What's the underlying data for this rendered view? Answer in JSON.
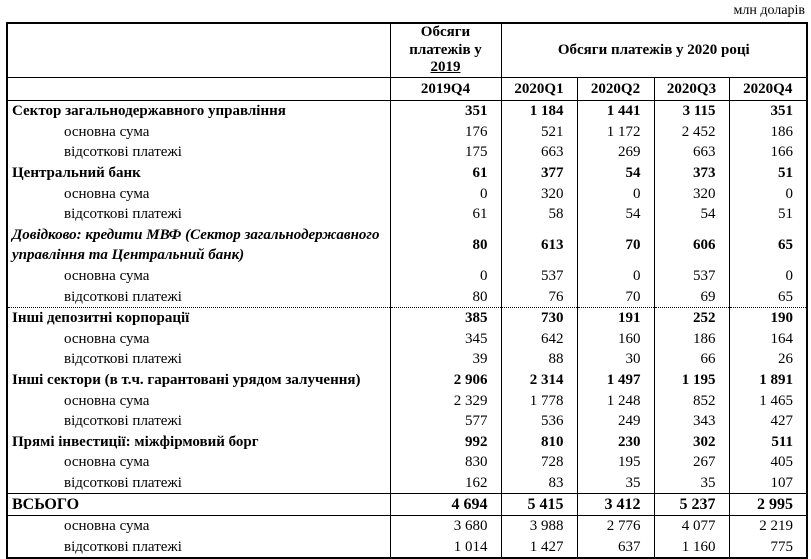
{
  "unit_label": "млн доларів",
  "header": {
    "group_2019_text": "Обсяги платежів у",
    "group_2019_year": "2019",
    "group_2020_text": "Обсяги платежів у 2020 році",
    "quarters": [
      "2019Q4",
      "2020Q1",
      "2020Q2",
      "2020Q3",
      "2020Q4"
    ]
  },
  "table": {
    "rows": [
      {
        "style": "section",
        "label": "Сектор загальнодержавного управління",
        "values": [
          "351",
          "1 184",
          "1 441",
          "3 115",
          "351"
        ]
      },
      {
        "style": "sub",
        "label": "основна сума",
        "values": [
          "176",
          "521",
          "1 172",
          "2 452",
          "186"
        ]
      },
      {
        "style": "sub",
        "label": "відсоткові платежі",
        "values": [
          "175",
          "663",
          "269",
          "663",
          "166"
        ]
      },
      {
        "style": "section",
        "label": "Центральний банк",
        "values": [
          "61",
          "377",
          "54",
          "373",
          "51"
        ]
      },
      {
        "style": "sub",
        "label": "основна сума",
        "values": [
          "0",
          "320",
          "0",
          "320",
          "0"
        ]
      },
      {
        "style": "sub",
        "label": "відсоткові платежі",
        "values": [
          "61",
          "58",
          "54",
          "54",
          "51"
        ]
      },
      {
        "style": "memo",
        "label": "Довідково: кредити МВФ (Сектор загальнодержавного управління та Центральний банк)",
        "values": [
          "80",
          "613",
          "70",
          "606",
          "65"
        ]
      },
      {
        "style": "sub",
        "label": "основна сума",
        "values": [
          "0",
          "537",
          "0",
          "537",
          "0"
        ]
      },
      {
        "style": "sub",
        "label": "відсоткові платежі",
        "dotted": true,
        "values": [
          "80",
          "76",
          "70",
          "69",
          "65"
        ]
      },
      {
        "style": "section",
        "label": "Інші депозитні корпорації",
        "values": [
          "385",
          "730",
          "191",
          "252",
          "190"
        ]
      },
      {
        "style": "sub",
        "label": "основна сума",
        "values": [
          "345",
          "642",
          "160",
          "186",
          "164"
        ]
      },
      {
        "style": "sub",
        "label": "відсоткові платежі",
        "values": [
          "39",
          "88",
          "30",
          "66",
          "26"
        ]
      },
      {
        "style": "section",
        "label": "Інші сектори (в т.ч. гарантовані урядом залучення)",
        "values": [
          "2 906",
          "2 314",
          "1 497",
          "1 195",
          "1 891"
        ]
      },
      {
        "style": "sub",
        "label": "основна сума",
        "values": [
          "2 329",
          "1 778",
          "1 248",
          "852",
          "1 465"
        ]
      },
      {
        "style": "sub",
        "label": "відсоткові платежі",
        "values": [
          "577",
          "536",
          "249",
          "343",
          "427"
        ]
      },
      {
        "style": "section",
        "label": "Прямі інвестиції: міжфірмовий борг",
        "values": [
          "992",
          "810",
          "230",
          "302",
          "511"
        ]
      },
      {
        "style": "sub",
        "label": "основна сума",
        "values": [
          "830",
          "728",
          "195",
          "267",
          "405"
        ]
      },
      {
        "style": "sub",
        "label": "відсоткові платежі",
        "values": [
          "162",
          "83",
          "35",
          "35",
          "107"
        ]
      },
      {
        "style": "total",
        "label": "ВСЬОГО",
        "values": [
          "4 694",
          "5 415",
          "3 412",
          "5 237",
          "2 995"
        ]
      },
      {
        "style": "sub",
        "label": "основна сума",
        "values": [
          "3 680",
          "3 988",
          "2 776",
          "4 077",
          "2 219"
        ]
      },
      {
        "style": "sub",
        "label": "відсоткові платежі",
        "values": [
          "1 014",
          "1 427",
          "637",
          "1 160",
          "775"
        ]
      }
    ]
  }
}
